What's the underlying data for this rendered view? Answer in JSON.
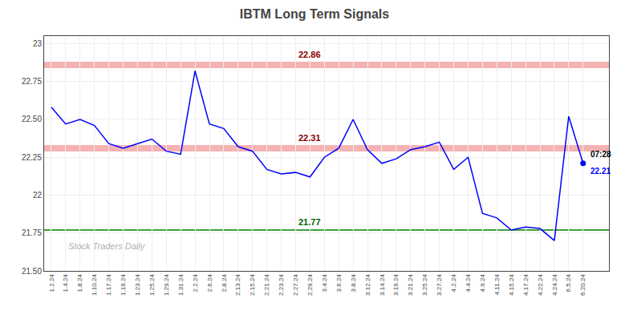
{
  "chart_data": {
    "type": "line",
    "title": "IBTM Long Term Signals",
    "color": "blue",
    "categories": [
      "1.2.24",
      "1.4.24",
      "1.8.24",
      "1.10.24",
      "1.17.24",
      "1.19.24",
      "1.23.24",
      "1.25.24",
      "1.29.24",
      "1.31.24",
      "2.2.24",
      "2.6.24",
      "2.8.24",
      "2.13.24",
      "2.15.24",
      "2.21.24",
      "2.23.24",
      "2.27.24",
      "2.29.24",
      "3.4.24",
      "3.6.24",
      "3.8.24",
      "3.12.24",
      "3.14.24",
      "3.19.24",
      "3.21.24",
      "3.25.24",
      "3.27.24",
      "4.2.24",
      "4.4.24",
      "4.9.24",
      "4.11.24",
      "4.15.24",
      "4.17.24",
      "4.22.24",
      "4.24.24",
      "6.5.24",
      "6.20.24"
    ],
    "values": [
      22.58,
      22.47,
      22.5,
      22.46,
      22.34,
      22.31,
      22.34,
      22.37,
      22.29,
      22.27,
      22.82,
      22.47,
      22.44,
      22.32,
      22.29,
      22.17,
      22.14,
      22.15,
      22.12,
      22.25,
      22.31,
      22.5,
      22.3,
      22.21,
      22.24,
      22.3,
      22.32,
      22.35,
      22.17,
      22.25,
      21.88,
      21.85,
      21.77,
      21.79,
      21.78,
      21.7,
      22.52,
      22.21
    ],
    "ylim": [
      21.5,
      23.05
    ],
    "yticks": [
      {
        "value": 21.5,
        "label": "21.50"
      },
      21.75,
      22,
      22.25,
      {
        "value": 22.5,
        "label": "22.50"
      },
      22.75,
      23
    ],
    "grid": true,
    "reference_lines": [
      {
        "y": 22.86,
        "label": "22.86",
        "color": "#f4aaaa",
        "label_color": "darkred",
        "line_style": "band"
      },
      {
        "y": 22.31,
        "label": "22.31",
        "color": "#f4aaaa",
        "label_color": "darkred",
        "line_style": "band"
      },
      {
        "y": 21.77,
        "label": "21.77",
        "color": "green",
        "label_color": "darkgreen",
        "line_style": "solid"
      }
    ],
    "last_point": {
      "time_label": "07:28",
      "time_color": "black",
      "value_label": "22.21",
      "color": "blue",
      "marker": "circle"
    },
    "watermark": "Stock Traders Daily"
  }
}
